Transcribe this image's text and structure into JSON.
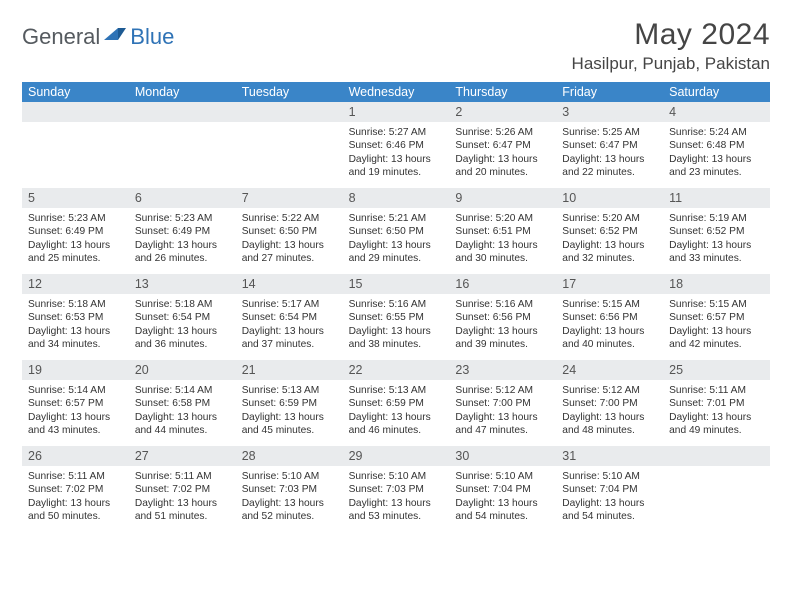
{
  "logo": {
    "part1": "General",
    "part2": "Blue"
  },
  "title": "May 2024",
  "location": "Hasilpur, Punjab, Pakistan",
  "colors": {
    "header_bg": "#3a85c8",
    "header_fg": "#ffffff",
    "daynum_bg": "#e9ebed",
    "text": "#333333",
    "logo_gray": "#555a5f",
    "logo_blue": "#2f73b6"
  },
  "day_names": [
    "Sunday",
    "Monday",
    "Tuesday",
    "Wednesday",
    "Thursday",
    "Friday",
    "Saturday"
  ],
  "weeks": [
    [
      {
        "n": "",
        "sr": "",
        "ss": "",
        "dl1": "",
        "dl2": ""
      },
      {
        "n": "",
        "sr": "",
        "ss": "",
        "dl1": "",
        "dl2": ""
      },
      {
        "n": "",
        "sr": "",
        "ss": "",
        "dl1": "",
        "dl2": ""
      },
      {
        "n": "1",
        "sr": "Sunrise: 5:27 AM",
        "ss": "Sunset: 6:46 PM",
        "dl1": "Daylight: 13 hours",
        "dl2": "and 19 minutes."
      },
      {
        "n": "2",
        "sr": "Sunrise: 5:26 AM",
        "ss": "Sunset: 6:47 PM",
        "dl1": "Daylight: 13 hours",
        "dl2": "and 20 minutes."
      },
      {
        "n": "3",
        "sr": "Sunrise: 5:25 AM",
        "ss": "Sunset: 6:47 PM",
        "dl1": "Daylight: 13 hours",
        "dl2": "and 22 minutes."
      },
      {
        "n": "4",
        "sr": "Sunrise: 5:24 AM",
        "ss": "Sunset: 6:48 PM",
        "dl1": "Daylight: 13 hours",
        "dl2": "and 23 minutes."
      }
    ],
    [
      {
        "n": "5",
        "sr": "Sunrise: 5:23 AM",
        "ss": "Sunset: 6:49 PM",
        "dl1": "Daylight: 13 hours",
        "dl2": "and 25 minutes."
      },
      {
        "n": "6",
        "sr": "Sunrise: 5:23 AM",
        "ss": "Sunset: 6:49 PM",
        "dl1": "Daylight: 13 hours",
        "dl2": "and 26 minutes."
      },
      {
        "n": "7",
        "sr": "Sunrise: 5:22 AM",
        "ss": "Sunset: 6:50 PM",
        "dl1": "Daylight: 13 hours",
        "dl2": "and 27 minutes."
      },
      {
        "n": "8",
        "sr": "Sunrise: 5:21 AM",
        "ss": "Sunset: 6:50 PM",
        "dl1": "Daylight: 13 hours",
        "dl2": "and 29 minutes."
      },
      {
        "n": "9",
        "sr": "Sunrise: 5:20 AM",
        "ss": "Sunset: 6:51 PM",
        "dl1": "Daylight: 13 hours",
        "dl2": "and 30 minutes."
      },
      {
        "n": "10",
        "sr": "Sunrise: 5:20 AM",
        "ss": "Sunset: 6:52 PM",
        "dl1": "Daylight: 13 hours",
        "dl2": "and 32 minutes."
      },
      {
        "n": "11",
        "sr": "Sunrise: 5:19 AM",
        "ss": "Sunset: 6:52 PM",
        "dl1": "Daylight: 13 hours",
        "dl2": "and 33 minutes."
      }
    ],
    [
      {
        "n": "12",
        "sr": "Sunrise: 5:18 AM",
        "ss": "Sunset: 6:53 PM",
        "dl1": "Daylight: 13 hours",
        "dl2": "and 34 minutes."
      },
      {
        "n": "13",
        "sr": "Sunrise: 5:18 AM",
        "ss": "Sunset: 6:54 PM",
        "dl1": "Daylight: 13 hours",
        "dl2": "and 36 minutes."
      },
      {
        "n": "14",
        "sr": "Sunrise: 5:17 AM",
        "ss": "Sunset: 6:54 PM",
        "dl1": "Daylight: 13 hours",
        "dl2": "and 37 minutes."
      },
      {
        "n": "15",
        "sr": "Sunrise: 5:16 AM",
        "ss": "Sunset: 6:55 PM",
        "dl1": "Daylight: 13 hours",
        "dl2": "and 38 minutes."
      },
      {
        "n": "16",
        "sr": "Sunrise: 5:16 AM",
        "ss": "Sunset: 6:56 PM",
        "dl1": "Daylight: 13 hours",
        "dl2": "and 39 minutes."
      },
      {
        "n": "17",
        "sr": "Sunrise: 5:15 AM",
        "ss": "Sunset: 6:56 PM",
        "dl1": "Daylight: 13 hours",
        "dl2": "and 40 minutes."
      },
      {
        "n": "18",
        "sr": "Sunrise: 5:15 AM",
        "ss": "Sunset: 6:57 PM",
        "dl1": "Daylight: 13 hours",
        "dl2": "and 42 minutes."
      }
    ],
    [
      {
        "n": "19",
        "sr": "Sunrise: 5:14 AM",
        "ss": "Sunset: 6:57 PM",
        "dl1": "Daylight: 13 hours",
        "dl2": "and 43 minutes."
      },
      {
        "n": "20",
        "sr": "Sunrise: 5:14 AM",
        "ss": "Sunset: 6:58 PM",
        "dl1": "Daylight: 13 hours",
        "dl2": "and 44 minutes."
      },
      {
        "n": "21",
        "sr": "Sunrise: 5:13 AM",
        "ss": "Sunset: 6:59 PM",
        "dl1": "Daylight: 13 hours",
        "dl2": "and 45 minutes."
      },
      {
        "n": "22",
        "sr": "Sunrise: 5:13 AM",
        "ss": "Sunset: 6:59 PM",
        "dl1": "Daylight: 13 hours",
        "dl2": "and 46 minutes."
      },
      {
        "n": "23",
        "sr": "Sunrise: 5:12 AM",
        "ss": "Sunset: 7:00 PM",
        "dl1": "Daylight: 13 hours",
        "dl2": "and 47 minutes."
      },
      {
        "n": "24",
        "sr": "Sunrise: 5:12 AM",
        "ss": "Sunset: 7:00 PM",
        "dl1": "Daylight: 13 hours",
        "dl2": "and 48 minutes."
      },
      {
        "n": "25",
        "sr": "Sunrise: 5:11 AM",
        "ss": "Sunset: 7:01 PM",
        "dl1": "Daylight: 13 hours",
        "dl2": "and 49 minutes."
      }
    ],
    [
      {
        "n": "26",
        "sr": "Sunrise: 5:11 AM",
        "ss": "Sunset: 7:02 PM",
        "dl1": "Daylight: 13 hours",
        "dl2": "and 50 minutes."
      },
      {
        "n": "27",
        "sr": "Sunrise: 5:11 AM",
        "ss": "Sunset: 7:02 PM",
        "dl1": "Daylight: 13 hours",
        "dl2": "and 51 minutes."
      },
      {
        "n": "28",
        "sr": "Sunrise: 5:10 AM",
        "ss": "Sunset: 7:03 PM",
        "dl1": "Daylight: 13 hours",
        "dl2": "and 52 minutes."
      },
      {
        "n": "29",
        "sr": "Sunrise: 5:10 AM",
        "ss": "Sunset: 7:03 PM",
        "dl1": "Daylight: 13 hours",
        "dl2": "and 53 minutes."
      },
      {
        "n": "30",
        "sr": "Sunrise: 5:10 AM",
        "ss": "Sunset: 7:04 PM",
        "dl1": "Daylight: 13 hours",
        "dl2": "and 54 minutes."
      },
      {
        "n": "31",
        "sr": "Sunrise: 5:10 AM",
        "ss": "Sunset: 7:04 PM",
        "dl1": "Daylight: 13 hours",
        "dl2": "and 54 minutes."
      },
      {
        "n": "",
        "sr": "",
        "ss": "",
        "dl1": "",
        "dl2": ""
      }
    ]
  ]
}
